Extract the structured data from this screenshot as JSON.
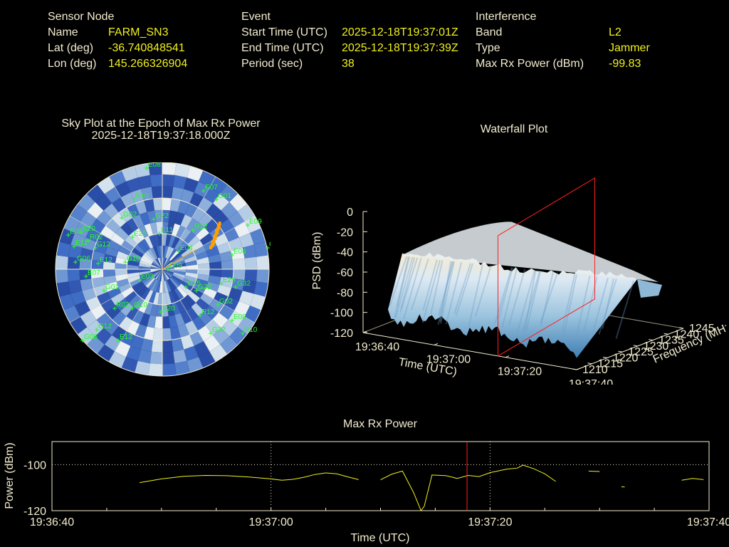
{
  "sensor": {
    "header": "Sensor Node",
    "name_label": "Name",
    "name": "FARM_SN3",
    "lat_label": "Lat (deg)",
    "lat": "-36.740848541",
    "lon_label": "Lon (deg)",
    "lon": "145.266326904"
  },
  "event": {
    "header": "Event",
    "start_label": "Start Time (UTC)",
    "start": "2025-12-18T19:37:01Z",
    "end_label": "End Time (UTC)",
    "end": "2025-12-18T19:37:39Z",
    "period_label": "Period (sec)",
    "period": "38"
  },
  "interference": {
    "header": "Interference",
    "band_label": "Band",
    "band": "L2",
    "type_label": "Type",
    "type": "Jammer",
    "power_label": "Max Rx Power (dBm)",
    "power": "-99.83"
  },
  "colors": {
    "label": "#f2ecd0",
    "value": "#f0f020",
    "marker": "#ff2020",
    "sat": "#20ff20",
    "trace": "#ffa000"
  },
  "chart_data": [
    {
      "type": "polar",
      "title": "Sky Plot at the Epoch of Max Rx Power",
      "subtitle": "2025-12-18T19:37:18.000Z",
      "satellites": [
        "E08",
        "R10",
        "G02",
        "E20",
        "E03",
        "R02",
        "G12",
        "G06",
        "E12",
        "G10",
        "E11",
        "E07",
        "G01",
        "E09",
        "G25",
        "E04",
        "E25",
        "G22",
        "R12",
        "G32"
      ]
    },
    {
      "type": "surface",
      "title": "Waterfall Plot",
      "zlabel": "PSD (dBm)",
      "zticks": [
        "0",
        "-20",
        "-40",
        "-60",
        "-80",
        "-100",
        "-120"
      ],
      "xlabel": "Time (UTC)",
      "xticks": [
        "19:36:40",
        "19:37:00",
        "19:37:20",
        "19:37:40"
      ],
      "ylabel": "Frequency (MHz)",
      "yticks": [
        "1210",
        "1215",
        "1220",
        "1225",
        "1230",
        "1235",
        "1240",
        "1245"
      ],
      "zlim": [
        -120,
        0
      ]
    },
    {
      "type": "line",
      "title": "Max Rx Power",
      "xlabel": "Time (UTC)",
      "ylabel": "Power (dBm)",
      "xticks": [
        "19:36:40",
        "19:37:00",
        "19:37:20",
        "19:37:40"
      ],
      "yticks": [
        "-100",
        "-120"
      ],
      "xlim": [
        0,
        60
      ],
      "ylim": [
        -120,
        -90
      ],
      "marker_t": 37.9,
      "segments": [
        [
          [
            8,
            -107.8
          ],
          [
            10,
            -106.2
          ],
          [
            12,
            -105.1
          ],
          [
            14,
            -104.7
          ],
          [
            16,
            -104.8
          ],
          [
            18,
            -105.4
          ],
          [
            20,
            -106.2
          ],
          [
            21,
            -106.8
          ],
          [
            22,
            -106.4
          ],
          [
            23,
            -105.5
          ],
          [
            24,
            -104.3
          ],
          [
            25,
            -103.6
          ],
          [
            26,
            -104.0
          ],
          [
            27,
            -105.3
          ],
          [
            28,
            -106.5
          ]
        ],
        [
          [
            30,
            -106.6
          ],
          [
            31,
            -104.2
          ],
          [
            32,
            -102.8
          ],
          [
            33,
            -112
          ],
          [
            33.7,
            -120
          ],
          [
            34,
            -118
          ],
          [
            34.7,
            -104.5
          ],
          [
            36,
            -104.8
          ],
          [
            37,
            -106
          ],
          [
            38,
            -104.7
          ],
          [
            39,
            -105.2
          ],
          [
            40,
            -103.5
          ],
          [
            41.5,
            -102
          ],
          [
            42.5,
            -101.5
          ],
          [
            43,
            -100.2
          ],
          [
            44,
            -101.8
          ],
          [
            45,
            -104
          ],
          [
            46,
            -107.3
          ]
        ],
        [
          [
            49,
            -102.8
          ],
          [
            50,
            -103.0
          ]
        ],
        [
          [
            52,
            -109.6
          ],
          [
            52.3,
            -109.7
          ]
        ],
        [
          [
            57.5,
            -106.8
          ],
          [
            58.5,
            -106.0
          ],
          [
            59.5,
            -106.5
          ]
        ]
      ]
    }
  ]
}
